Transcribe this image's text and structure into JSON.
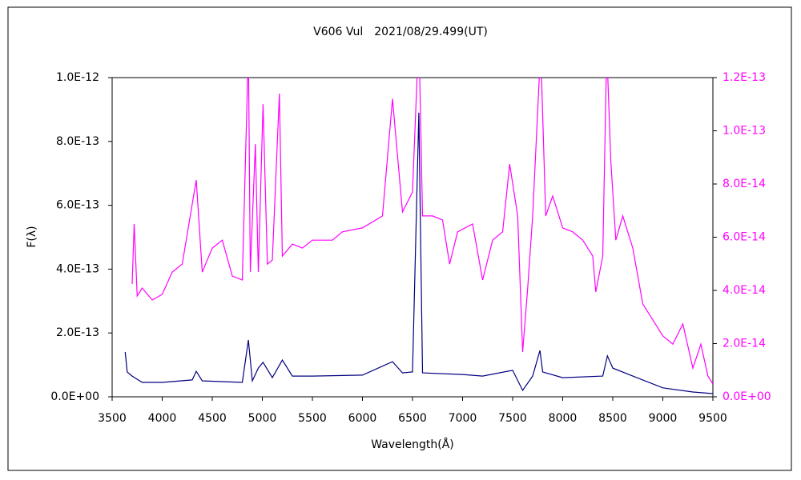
{
  "chart_data": {
    "type": "line",
    "title": "V606 Vul　2021/08/29.499(UT)",
    "xlabel": "Wavelength(Å)",
    "ylabel": "F(λ)",
    "xlim": [
      3500,
      9500
    ],
    "xticks": [
      3500,
      4000,
      4500,
      5000,
      5500,
      6000,
      6500,
      7000,
      7500,
      8000,
      8500,
      9000,
      9500
    ],
    "ylim": [
      0,
      1e-12
    ],
    "yticks": [
      {
        "value": 0,
        "label": "0.0E+00"
      },
      {
        "value": 2e-13,
        "label": "2.0E-13"
      },
      {
        "value": 4e-13,
        "label": "4.0E-13"
      },
      {
        "value": 6e-13,
        "label": "6.0E-13"
      },
      {
        "value": 8e-13,
        "label": "8.0E-13"
      },
      {
        "value": 1e-12,
        "label": "1.0E-12"
      }
    ],
    "y2lim": [
      0,
      1.2e-13
    ],
    "y2ticks": [
      {
        "value": 0,
        "label": "0.0E+00"
      },
      {
        "value": 2e-14,
        "label": "2.0E-14"
      },
      {
        "value": 4e-14,
        "label": "4.0E-14"
      },
      {
        "value": 6e-14,
        "label": "6.0E-14"
      },
      {
        "value": 8e-14,
        "label": "8.0E-14"
      },
      {
        "value": 1e-13,
        "label": "1.0E-13"
      },
      {
        "value": 1.2e-13,
        "label": "1.2E-13"
      }
    ],
    "grid": false,
    "series": [
      {
        "color": "#000080",
        "x": [
          3630,
          3650,
          3700,
          3800,
          4000,
          4300,
          4340,
          4400,
          4800,
          4861,
          4900,
          4960,
          5007,
          5100,
          5200,
          5300,
          5500,
          6000,
          6300,
          6400,
          6500,
          6563,
          6600,
          7000,
          7200,
          7500,
          7600,
          7700,
          7773,
          7800,
          8000,
          8400,
          8446,
          8500,
          8700,
          9000,
          9300,
          9500
        ],
        "values": [
          1.4e-13,
          7.8e-14,
          6.5e-14,
          4.5e-14,
          4.5e-14,
          5.3e-14,
          8e-14,
          5e-14,
          4.5e-14,
          1.78e-13,
          5e-14,
          9e-14,
          1.08e-13,
          6e-14,
          1.15e-13,
          6.5e-14,
          6.5e-14,
          6.8e-14,
          1.1e-13,
          7.5e-14,
          7.8e-14,
          8.9e-13,
          7.5e-14,
          7e-14,
          6.5e-14,
          8.3e-14,
          2e-14,
          6.5e-14,
          1.45e-13,
          7.8e-14,
          6e-14,
          6.5e-14,
          1.28e-13,
          9e-14,
          6.5e-14,
          2.8e-14,
          1.5e-14,
          1e-14
        ]
      },
      {
        "color": "#ff00ff",
        "axis": "y2",
        "x": [
          3700,
          3720,
          3750,
          3800,
          3900,
          4000,
          4100,
          4200,
          4340,
          4400,
          4500,
          4600,
          4700,
          4800,
          4861,
          4880,
          4930,
          4960,
          5007,
          5050,
          5100,
          5170,
          5200,
          5300,
          5400,
          5500,
          5700,
          5800,
          6000,
          6200,
          6300,
          6400,
          6500,
          6563,
          6600,
          6700,
          6800,
          6870,
          6950,
          7100,
          7200,
          7300,
          7400,
          7470,
          7550,
          7600,
          7650,
          7700,
          7780,
          7830,
          7900,
          8000,
          8100,
          8200,
          8300,
          8330,
          8400,
          8440,
          8480,
          8530,
          8600,
          8700,
          8800,
          8900,
          9000,
          9100,
          9200,
          9300,
          9380,
          9450,
          9500
        ],
        "values": [
          4.24e-14,
          6.5e-14,
          3.79e-14,
          4.09e-14,
          3.64e-14,
          3.85e-14,
          4.69e-14,
          4.99e-14,
          8.15e-14,
          4.69e-14,
          5.59e-14,
          5.89e-14,
          4.54e-14,
          4.39e-14,
          1.31e-13,
          4.69e-14,
          9.5e-14,
          4.69e-14,
          1.1e-13,
          4.99e-14,
          5.14e-14,
          1.14e-13,
          5.29e-14,
          5.74e-14,
          5.59e-14,
          5.89e-14,
          5.89e-14,
          6.2e-14,
          6.35e-14,
          6.8e-14,
          1.12e-13,
          6.95e-14,
          7.7e-14,
          1.37e-13,
          6.8e-14,
          6.8e-14,
          6.65e-14,
          4.99e-14,
          6.2e-14,
          6.5e-14,
          4.39e-14,
          5.89e-14,
          6.2e-14,
          8.75e-14,
          6.8e-14,
          1.68e-14,
          4.09e-14,
          6.8e-14,
          1.31e-13,
          6.8e-14,
          7.55e-14,
          6.35e-14,
          6.2e-14,
          5.89e-14,
          5.29e-14,
          3.94e-14,
          5.29e-14,
          1.31e-13,
          8.9e-14,
          5.89e-14,
          6.8e-14,
          5.59e-14,
          3.49e-14,
          2.89e-14,
          2.29e-14,
          1.98e-14,
          2.74e-14,
          1.08e-14,
          1.98e-14,
          7.8e-15,
          4.8e-15
        ]
      }
    ]
  }
}
